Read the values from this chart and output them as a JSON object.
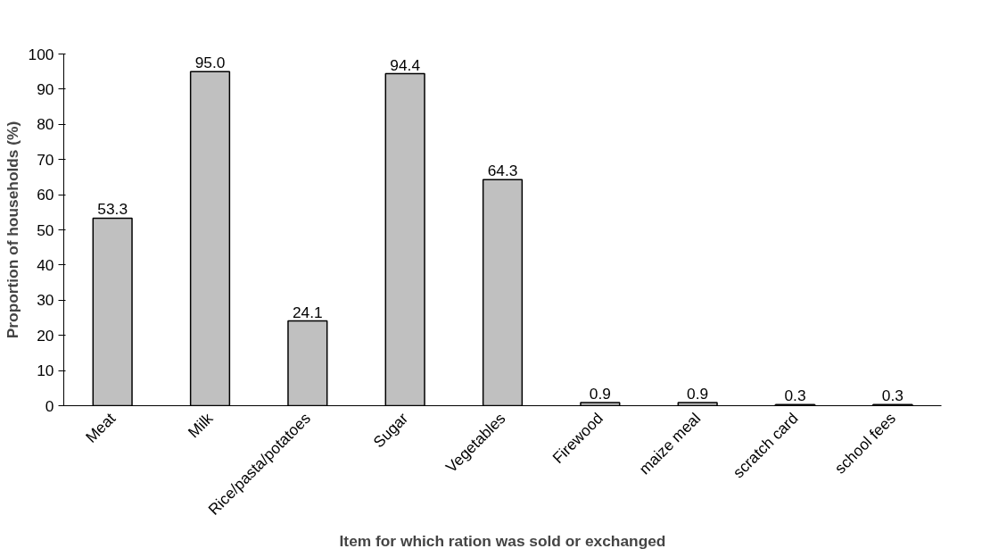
{
  "chart_data": {
    "type": "bar",
    "xlabel": "Item for which ration was sold or exchanged",
    "ylabel": "Proportion of households (%)",
    "categories": [
      "Meat",
      "Milk",
      "Rice/pasta/potatoes",
      "Sugar",
      "Vegetables",
      "Firewood",
      "maize meal",
      "scratch card",
      "school fees"
    ],
    "values": [
      53.3,
      95.0,
      24.1,
      94.4,
      64.3,
      0.9,
      0.9,
      0.3,
      0.3
    ],
    "value_labels": [
      "53.3",
      "95.0",
      "24.1",
      "94.4",
      "64.3",
      "0.9",
      "0.9",
      "0.3",
      "0.3"
    ],
    "color": "#c0c0c0",
    "ylim": [
      0,
      100
    ],
    "yticks": [
      0,
      10,
      20,
      30,
      40,
      50,
      60,
      70,
      80,
      90,
      100
    ],
    "grid": false
  }
}
